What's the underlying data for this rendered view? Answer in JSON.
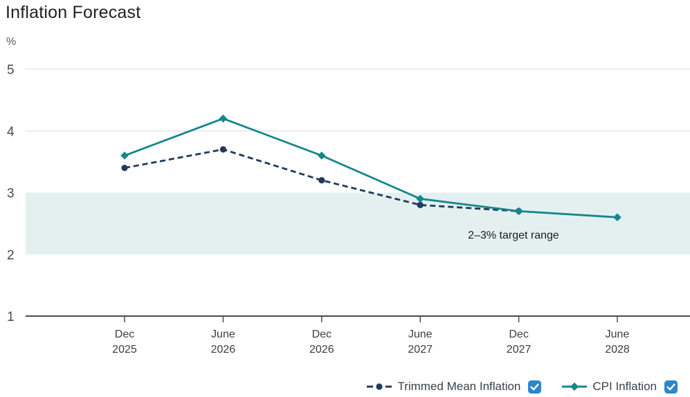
{
  "title": "Inflation Forecast",
  "y_axis_unit": "%",
  "colors": {
    "checkbox": "#2e86c8",
    "gridline": "#d9d9d9",
    "axis": "#4a4a4a"
  },
  "chart_data": {
    "type": "line",
    "title": "Inflation Forecast",
    "ylabel": "%",
    "xlabel": "",
    "categories": [
      "Dec 2025",
      "June 2026",
      "Dec 2026",
      "June 2027",
      "Dec 2027",
      "June 2028"
    ],
    "yticks": [
      5,
      4,
      3,
      2,
      1
    ],
    "ylim": [
      1,
      5
    ],
    "gridlines": [
      5,
      4
    ],
    "baseline": 1,
    "grid": "horizontal-partial",
    "legend_position": "bottom-right",
    "series": [
      {
        "name": "Trimmed Mean Inflation",
        "color": "#20395f",
        "style": "dashed",
        "marker": "circle",
        "checked": true,
        "values": [
          3.4,
          3.7,
          3.2,
          2.8,
          2.7,
          null
        ]
      },
      {
        "name": "CPI Inflation",
        "color": "#17868d",
        "style": "solid",
        "marker": "diamond",
        "checked": true,
        "values": [
          3.6,
          4.2,
          3.6,
          2.9,
          2.7,
          2.6
        ]
      }
    ],
    "target_band": {
      "from": 2,
      "to": 3,
      "label": "2–3% target range",
      "color": "#e3f0ef"
    }
  }
}
